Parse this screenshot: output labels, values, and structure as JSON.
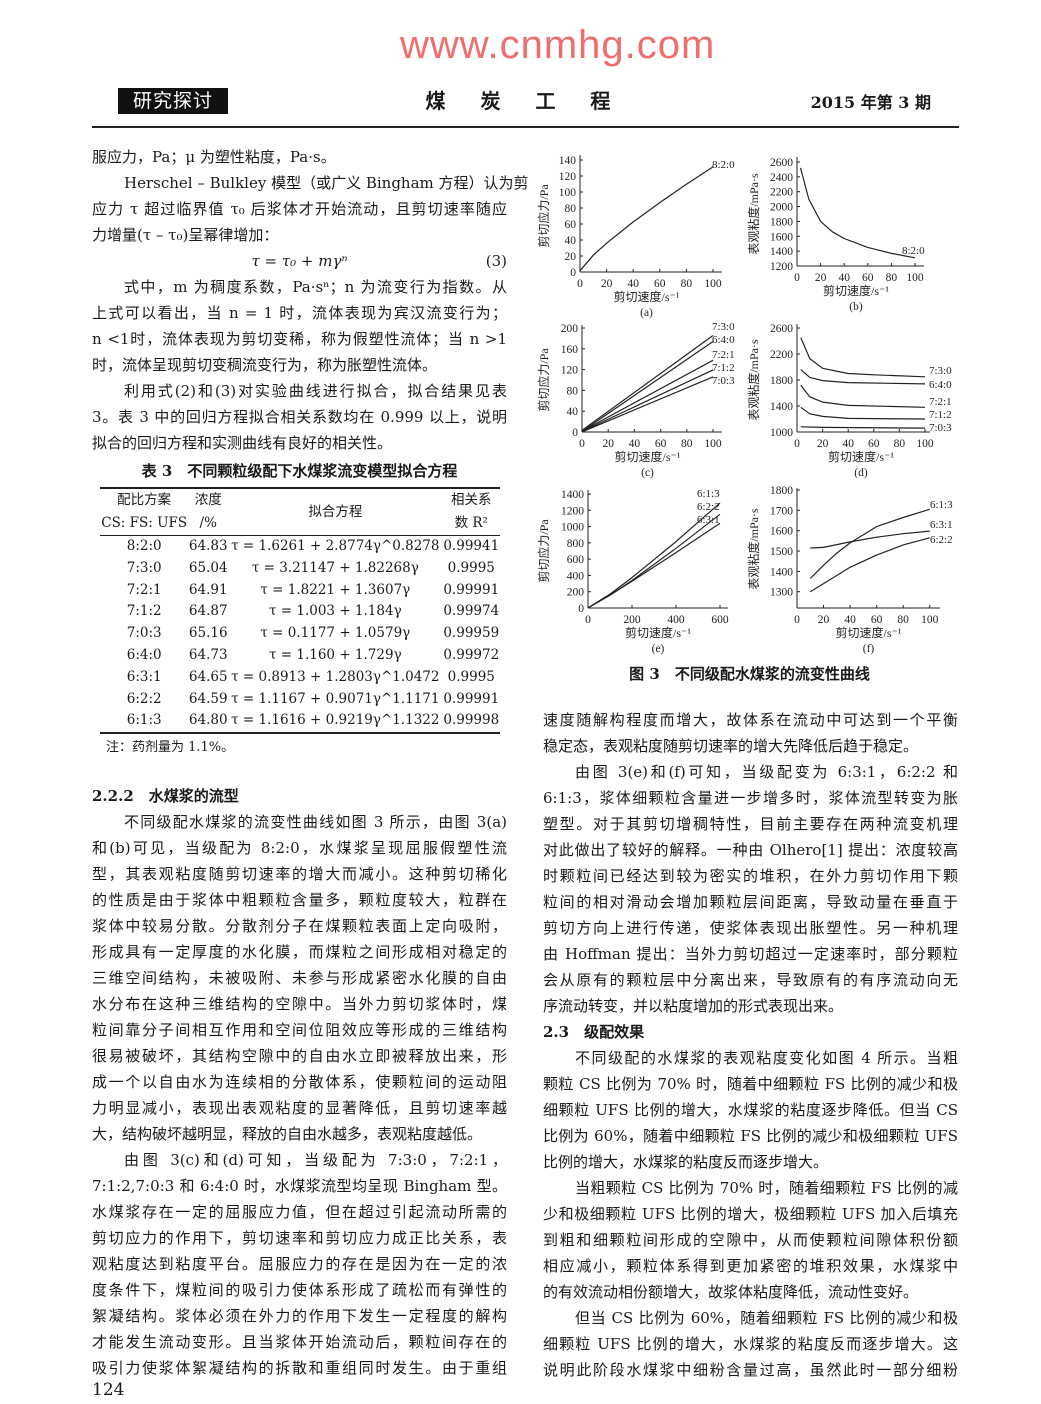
{
  "header": {
    "section_tag": "研究探讨",
    "journal": "煤 炭 工 程",
    "issue": "2015 年第 3 期"
  },
  "left_top": [
    {
      "indent": false,
      "continues": false,
      "lines": [
        "服应力，Pa；μ 为塑性粘度，Pa·s。"
      ]
    },
    {
      "indent": true,
      "continues": false,
      "lines": [
        "Herschel – Bulkley 模型（或广义 Bingham 方程）认为剪",
        "应力 τ 超过临界值 τ₀ 后浆体才开始流动，且剪切速率随应",
        "力增量(τ – τ₀)呈幂律增加："
      ]
    },
    {
      "formula": "τ = τ₀ + mγⁿ",
      "eqno": "(3)"
    },
    {
      "indent": true,
      "continues": false,
      "lines": [
        "式中，m 为稠度系数，Pa·sⁿ；n 为流变行为指数。从",
        "上式可以看出，当 n = 1 时，流体表现为宾汉流变行为；",
        "n <1时，流体表现为剪切变稀，称为假塑性流体；当 n >1",
        "时，流体呈现剪切变稠流变行为，称为胀塑性流体。"
      ]
    },
    {
      "indent": true,
      "continues": false,
      "lines": [
        "利用式(2)和(3)对实验曲线进行拟合，拟合结果见表",
        "3。表 3 中的回归方程拟合相关系数均在 0.999 以上，说明",
        "拟合的回归方程和实测曲线有良好的相关性。"
      ]
    }
  ],
  "table3": {
    "title": "表 3　不同颗粒级配下水煤浆流变模型拟合方程",
    "headers": {
      "ratio_1": "配比方案",
      "ratio_2": "CS: FS: UFS",
      "conc_1": "浓度",
      "conc_2": "/%",
      "equation": "拟合方程",
      "r2_1": "相关系",
      "r2_2": "数 R²"
    },
    "rows": [
      {
        "ratio": "8:2:0",
        "conc": "64.83",
        "equation": "τ = 1.6261 + 2.8774γ^0.8278",
        "r2": "0.99941"
      },
      {
        "ratio": "7:3:0",
        "conc": "65.04",
        "equation": "τ = 3.21147 + 1.82268γ",
        "r2": "0.9995"
      },
      {
        "ratio": "7:2:1",
        "conc": "64.91",
        "equation": "τ = 1.8221 + 1.3607γ",
        "r2": "0.99991"
      },
      {
        "ratio": "7:1:2",
        "conc": "64.87",
        "equation": "τ = 1.003 + 1.184γ",
        "r2": "0.99974"
      },
      {
        "ratio": "7:0:3",
        "conc": "65.16",
        "equation": "τ = 0.1177 + 1.0579γ",
        "r2": "0.99959"
      },
      {
        "ratio": "6:4:0",
        "conc": "64.73",
        "equation": "τ = 1.160 + 1.729γ",
        "r2": "0.99972"
      },
      {
        "ratio": "6:3:1",
        "conc": "64.65",
        "equation": "τ = 0.8913 + 1.2803γ^1.0472",
        "r2": "0.9995"
      },
      {
        "ratio": "6:2:2",
        "conc": "64.59",
        "equation": "τ = 1.1167 + 0.9071γ^1.1171",
        "r2": "0.99991"
      },
      {
        "ratio": "6:1:3",
        "conc": "64.80",
        "equation": "τ = 1.1616 + 0.9219γ^1.1322",
        "r2": "0.99998"
      }
    ],
    "note": "注：药剂量为 1.1%。"
  },
  "left_bottom": [
    {
      "heading": "2.2.2　水煤浆的流型"
    },
    {
      "indent": true,
      "continues": false,
      "lines": [
        "不同级配水煤浆的流变性曲线如图 3 所示，由图 3(a)",
        "和(b)可见，当级配为 8:2:0，水煤浆呈现屈服假塑性流",
        "型，其表观粘度随剪切速率的增大而减小。这种剪切稀化",
        "的性质是由于浆体中粗颗粒含量多，颗粒度较大，粒群在",
        "浆体中较易分散。分散剂分子在煤颗粒表面上定向吸附，",
        "形成具有一定厚度的水化膜，而煤粒之间形成相对稳定的",
        "三维空间结构，未被吸附、未参与形成紧密水化膜的自由",
        "水分布在这种三维结构的空隙中。当外力剪切浆体时，煤",
        "粒间靠分子间相互作用和空间位阻效应等形成的三维结构",
        "很易被破坏，其结构空隙中的自由水立即被释放出来，形",
        "成一个以自由水为连续相的分散体系，使颗粒间的运动阻",
        "力明显减小，表现出表观粘度的显著降低，且剪切速率越",
        "大，结构破坏越明显，释放的自由水越多，表观粘度越低。"
      ]
    },
    {
      "indent": true,
      "continues": true,
      "lines": [
        "由图 3(c)和(d)可知，当级配为 7:3:0，7:2:1，",
        "7:1:2,7:0:3 和 6:4:0 时，水煤浆流型均呈现 Bingham 型。",
        "水煤浆存在一定的屈服应力值，但在超过引起流动所需的",
        "剪切应力的作用下，剪切速率和剪切应力成正比关系，表",
        "观粘度达到粘度平台。屈服应力的存在是因为在一定的浓",
        "度条件下，煤粒间的吸引力使体系形成了疏松而有弹性的",
        "絮凝结构。浆体必须在外力的作用下发生一定程度的解构",
        "才能发生流动变形。且当浆体开始流动后，颗粒间存在的",
        "吸引力使浆体絮凝结构的拆散和重组同时发生。由于重组"
      ]
    }
  ],
  "right_col": [
    {
      "indent": false,
      "continues": false,
      "lines": [
        "速度随解构程度而增大，故体系在流动中可达到一个平衡",
        "稳定态，表观粘度随剪切速率的增大先降低后趋于稳定。"
      ]
    },
    {
      "indent": true,
      "continues": false,
      "lines": [
        "由图 3(e)和(f)可知，当级配变为 6:3:1，6:2:2 和",
        "6:1:3，浆体细颗粒含量进一步增多时，浆体流型转变为胀",
        "塑型。对于其剪切增稠特性，目前主要存在两种流变机理",
        "对此做出了较好的解释。一种由 Olhero[1] 提出：浓度较高",
        "时颗粒间已经达到较为密实的堆积，在外力剪切作用下颗",
        "粒间的相对滑动会增加颗粒层间距离，导致动量在垂直于",
        "剪切方向上进行传递，使浆体表现出胀塑性。另一种机理",
        "由 Hoffman 提出：当外力剪切超过一定速率时，部分颗粒",
        "会从原有的颗粒层中分离出来，导致原有的有序流动向无",
        "序流动转变，并以粘度增加的形式表现出来。"
      ]
    },
    {
      "heading": "2.3　级配效果"
    },
    {
      "indent": true,
      "continues": false,
      "lines": [
        "不同级配的水煤浆的表观粘度变化如图 4 所示。当粗",
        "颗粒 CS 比例为 70% 时，随着中细颗粒 FS 比例的减少和极",
        "细颗粒 UFS 比例的增大，水煤浆的粘度逐步降低。但当 CS",
        "比例为 60%，随着中细颗粒 FS 比例的减少和极细颗粒 UFS",
        "比例的增大，水煤浆的粘度反而逐步增大。"
      ]
    },
    {
      "indent": true,
      "continues": false,
      "lines": [
        "当粗颗粒 CS 比例为 70% 时，随着细颗粒 FS 比例的减",
        "少和极细颗粒 UFS 比例的增大，极细颗粒 UFS 加入后填充",
        "到粗和细颗粒间形成的空隙中，从而使颗粒间隙体积份额",
        "相应减小，颗粒体系得到更加紧密的堆积效果，水煤浆中",
        "的有效流动相份额增大，故浆体粘度降低，流动性变好。"
      ]
    },
    {
      "indent": true,
      "continues": true,
      "lines": [
        "但当 CS 比例为 60%，随着细颗粒 FS 比例的减少和极",
        "细颗粒 UFS 比例的增大，水煤浆的粘度反而逐步增大。这",
        "说明此阶段水煤浆中细粉含量过高，虽然此时一部分细粉"
      ]
    }
  ],
  "figure3": {
    "caption": "图 3　不同级配水煤浆的流变性曲线"
  },
  "chart_data": [
    {
      "panel": "(a)",
      "type": "line",
      "xlabel": "剪切速度/s⁻¹",
      "ylabel": "剪切应力/Pa",
      "xlim": [
        0,
        100
      ],
      "ylim": [
        0,
        140
      ],
      "xticks": [
        0,
        20,
        40,
        60,
        80,
        100
      ],
      "yticks": [
        0,
        20,
        40,
        60,
        80,
        100,
        120,
        140
      ],
      "series": [
        {
          "name": "8:2:0",
          "x": [
            0,
            10,
            20,
            40,
            60,
            80,
            100
          ],
          "y": [
            1.6,
            21.0,
            36.0,
            62.6,
            86.8,
            109.8,
            131.4
          ]
        }
      ]
    },
    {
      "panel": "(b)",
      "type": "line",
      "xlabel": "剪切速度/s⁻¹",
      "ylabel": "表观粘度/mPa·s",
      "xlim": [
        0,
        100
      ],
      "ylim": [
        1200,
        2600
      ],
      "xticks": [
        0,
        20,
        40,
        60,
        80,
        100
      ],
      "yticks": [
        1200,
        1400,
        1600,
        1800,
        2000,
        2200,
        2400,
        2600
      ],
      "series": [
        {
          "name": "8:2:0",
          "x": [
            3,
            10,
            20,
            30,
            40,
            60,
            80,
            100
          ],
          "y": [
            2520,
            2100,
            1800,
            1660,
            1570,
            1450,
            1370,
            1310
          ]
        }
      ]
    },
    {
      "panel": "(c)",
      "type": "line",
      "xlabel": "剪切速度/s⁻¹",
      "ylabel": "剪切应力/Pa",
      "xlim": [
        0,
        100
      ],
      "ylim": [
        0,
        200
      ],
      "xticks": [
        0,
        20,
        40,
        60,
        80,
        100
      ],
      "yticks": [
        0,
        40,
        80,
        120,
        160,
        200
      ],
      "series": [
        {
          "name": "7:3:0",
          "x": [
            0,
            100
          ],
          "y": [
            3.2,
            185.5
          ]
        },
        {
          "name": "6:4:0",
          "x": [
            0,
            100
          ],
          "y": [
            1.2,
            174.1
          ]
        },
        {
          "name": "7:2:1",
          "x": [
            0,
            100
          ],
          "y": [
            1.8,
            137.9
          ]
        },
        {
          "name": "7:1:2",
          "x": [
            0,
            100
          ],
          "y": [
            1.0,
            119.4
          ]
        },
        {
          "name": "7:0:3",
          "x": [
            0,
            100
          ],
          "y": [
            0.1,
            105.9
          ]
        }
      ]
    },
    {
      "panel": "(d)",
      "type": "line",
      "xlabel": "剪切速度/s⁻¹",
      "ylabel": "表观粘度/mPa·s",
      "xlim": [
        0,
        100
      ],
      "ylim": [
        1000,
        2600
      ],
      "xticks": [
        0,
        20,
        40,
        60,
        80,
        100
      ],
      "yticks": [
        1000,
        1400,
        1800,
        2200,
        2600
      ],
      "series": [
        {
          "name": "7:3:0",
          "x": [
            3,
            10,
            20,
            40,
            60,
            100
          ],
          "y": [
            2450,
            2130,
            1980,
            1900,
            1880,
            1850
          ]
        },
        {
          "name": "6:4:0",
          "x": [
            3,
            10,
            20,
            40,
            100
          ],
          "y": [
            1960,
            1840,
            1790,
            1760,
            1740
          ]
        },
        {
          "name": "7:2:1",
          "x": [
            3,
            10,
            20,
            40,
            100
          ],
          "y": [
            1720,
            1540,
            1460,
            1410,
            1380
          ]
        },
        {
          "name": "7:1:2",
          "x": [
            3,
            10,
            20,
            40,
            100
          ],
          "y": [
            1380,
            1280,
            1240,
            1210,
            1200
          ]
        },
        {
          "name": "7:0:3",
          "x": [
            3,
            20,
            100
          ],
          "y": [
            1080,
            1070,
            1060
          ]
        }
      ]
    },
    {
      "panel": "(e)",
      "type": "line",
      "xlabel": "剪切速度/s⁻¹",
      "ylabel": "剪切应力/Pa",
      "xlim": [
        0,
        700
      ],
      "ylim": [
        0,
        1400
      ],
      "xticks": [
        0,
        200,
        400,
        600
      ],
      "yticks": [
        0,
        200,
        400,
        600,
        800,
        1000,
        1200,
        1400
      ],
      "series": [
        {
          "name": "6:1:3",
          "x": [
            0,
            100,
            200,
            400,
            600
          ],
          "y": [
            1.2,
            170.7,
            372.8,
            815.7,
            1290
          ]
        },
        {
          "name": "6:2:2",
          "x": [
            0,
            100,
            200,
            400,
            600
          ],
          "y": [
            1.1,
            156.7,
            338.2,
            732.7,
            1151
          ]
        },
        {
          "name": "6:3:1",
          "x": [
            0,
            100,
            200,
            400,
            600
          ],
          "y": [
            0.9,
            160,
            329.6,
            680,
            1040
          ]
        }
      ]
    },
    {
      "panel": "(f)",
      "type": "line",
      "xlabel": "剪切速度/s⁻¹",
      "ylabel": "表观粘度/mPa·s",
      "xlim": [
        0,
        110
      ],
      "ylim": [
        1220,
        1800
      ],
      "xticks": [
        0,
        20,
        40,
        60,
        80,
        100
      ],
      "yticks": [
        1300,
        1400,
        1500,
        1600,
        1700,
        1800
      ],
      "series": [
        {
          "name": "6:1:3",
          "x": [
            10,
            20,
            30,
            40,
            50,
            60,
            80,
            100
          ],
          "y": [
            1365,
            1430,
            1490,
            1540,
            1580,
            1620,
            1665,
            1705
          ]
        },
        {
          "name": "6:3:1",
          "x": [
            10,
            20,
            40,
            60,
            80,
            100
          ],
          "y": [
            1515,
            1518,
            1545,
            1568,
            1585,
            1598
          ]
        },
        {
          "name": "6:2:2",
          "x": [
            10,
            20,
            40,
            60,
            80,
            100
          ],
          "y": [
            1300,
            1340,
            1420,
            1480,
            1530,
            1565
          ]
        }
      ]
    }
  ],
  "footer": {
    "page_number": "124"
  },
  "watermark": "www.cnmhg.com"
}
